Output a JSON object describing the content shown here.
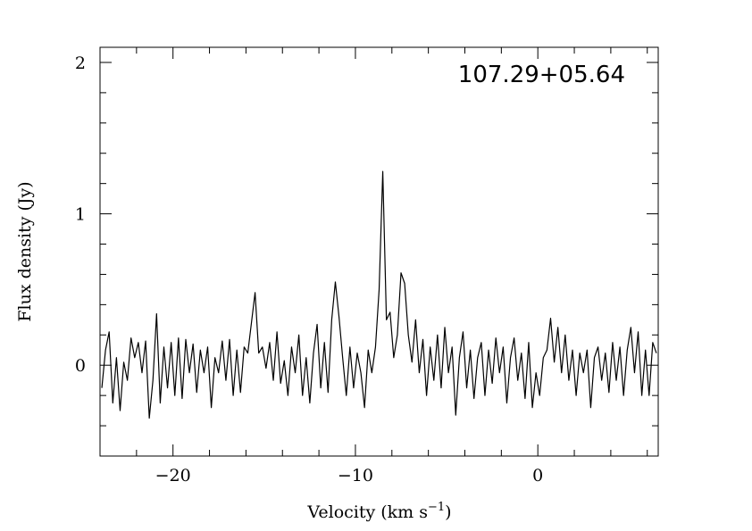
{
  "chart_data": {
    "type": "line",
    "annotation": "107.29+05.64",
    "y_label": "Flux density (Jy)",
    "x_label": "Velocity (km s",
    "x_label_sup": "−1",
    "x_label_end": ")",
    "color": "#000000",
    "xlim": [
      -24,
      6.6
    ],
    "ylim": [
      -0.6,
      2.1
    ],
    "xticks": [
      {
        "value": -20,
        "label": "−20"
      },
      {
        "value": -10,
        "label": "−10"
      },
      0
    ],
    "yticks": [
      0,
      1,
      2
    ],
    "xminorticks": [
      -22,
      -18,
      -16,
      -14,
      -12,
      -8,
      -6,
      -4,
      -2,
      2,
      4,
      6
    ],
    "yminorticks": [
      -0.6,
      -0.4,
      -0.2,
      0.2,
      0.4,
      0.6,
      0.8,
      1.2,
      1.4,
      1.6,
      1.8
    ],
    "x": [
      -23.9,
      -23.7,
      -23.5,
      -23.3,
      -23.1,
      -22.9,
      -22.7,
      -22.5,
      -22.3,
      -22.1,
      -21.9,
      -21.7,
      -21.5,
      -21.3,
      -21.1,
      -20.9,
      -20.7,
      -20.5,
      -20.3,
      -20.1,
      -19.9,
      -19.7,
      -19.5,
      -19.3,
      -19.1,
      -18.9,
      -18.7,
      -18.5,
      -18.3,
      -18.1,
      -17.9,
      -17.7,
      -17.5,
      -17.3,
      -17.1,
      -16.9,
      -16.7,
      -16.5,
      -16.3,
      -16.1,
      -15.9,
      -15.7,
      -15.5,
      -15.3,
      -15.1,
      -14.9,
      -14.7,
      -14.5,
      -14.3,
      -14.1,
      -13.9,
      -13.7,
      -13.5,
      -13.3,
      -13.1,
      -12.9,
      -12.7,
      -12.5,
      -12.3,
      -12.1,
      -11.9,
      -11.7,
      -11.5,
      -11.3,
      -11.1,
      -10.9,
      -10.7,
      -10.5,
      -10.3,
      -10.1,
      -9.9,
      -9.7,
      -9.5,
      -9.3,
      -9.1,
      -8.9,
      -8.7,
      -8.5,
      -8.3,
      -8.1,
      -7.9,
      -7.7,
      -7.5,
      -7.3,
      -7.1,
      -6.9,
      -6.7,
      -6.5,
      -6.3,
      -6.1,
      -5.9,
      -5.7,
      -5.5,
      -5.3,
      -5.1,
      -4.9,
      -4.7,
      -4.5,
      -4.3,
      -4.1,
      -3.9,
      -3.7,
      -3.5,
      -3.3,
      -3.1,
      -2.9,
      -2.7,
      -2.5,
      -2.3,
      -2.1,
      -1.9,
      -1.7,
      -1.5,
      -1.3,
      -1.1,
      -0.9,
      -0.7,
      -0.5,
      -0.3,
      -0.1,
      0.1,
      0.3,
      0.5,
      0.7,
      0.9,
      1.1,
      1.3,
      1.5,
      1.7,
      1.9,
      2.1,
      2.3,
      2.5,
      2.7,
      2.9,
      3.1,
      3.3,
      3.5,
      3.7,
      3.9,
      4.1,
      4.3,
      4.5,
      4.7,
      4.9,
      5.1,
      5.3,
      5.5,
      5.7,
      5.9,
      6.1,
      6.3,
      6.5
    ],
    "values": [
      -0.15,
      0.1,
      0.22,
      -0.25,
      0.05,
      -0.3,
      0.02,
      -0.1,
      0.18,
      0.05,
      0.15,
      -0.05,
      0.16,
      -0.35,
      -0.1,
      0.34,
      -0.25,
      0.12,
      -0.15,
      0.15,
      -0.2,
      0.18,
      -0.22,
      0.17,
      -0.05,
      0.14,
      -0.18,
      0.1,
      -0.05,
      0.12,
      -0.28,
      0.05,
      -0.05,
      0.16,
      -0.1,
      0.17,
      -0.2,
      0.1,
      -0.18,
      0.12,
      0.08,
      0.28,
      0.48,
      0.08,
      0.12,
      -0.02,
      0.15,
      -0.1,
      0.22,
      -0.12,
      0.03,
      -0.2,
      0.12,
      -0.05,
      0.2,
      -0.2,
      0.05,
      -0.25,
      0.08,
      0.27,
      -0.15,
      0.15,
      -0.18,
      0.3,
      0.55,
      0.32,
      0.05,
      -0.2,
      0.12,
      -0.15,
      0.08,
      -0.05,
      -0.28,
      0.1,
      -0.05,
      0.12,
      0.5,
      1.28,
      0.3,
      0.35,
      0.05,
      0.2,
      0.61,
      0.54,
      0.2,
      0.02,
      0.3,
      -0.05,
      0.17,
      -0.2,
      0.12,
      -0.1,
      0.2,
      -0.15,
      0.25,
      -0.05,
      0.12,
      -0.33,
      0.05,
      0.22,
      -0.15,
      0.1,
      -0.22,
      0.05,
      0.15,
      -0.2,
      0.1,
      -0.12,
      0.18,
      -0.05,
      0.12,
      -0.25,
      0.05,
      0.18,
      -0.1,
      0.08,
      -0.22,
      0.15,
      -0.28,
      -0.05,
      -0.2,
      0.05,
      0.1,
      0.31,
      0.02,
      0.25,
      -0.05,
      0.2,
      -0.1,
      0.1,
      -0.2,
      0.08,
      -0.05,
      0.1,
      -0.28,
      0.05,
      0.12,
      -0.1,
      0.08,
      -0.18,
      0.15,
      -0.1,
      0.12,
      -0.2,
      0.1,
      0.25,
      -0.05,
      0.22,
      -0.2,
      0.1,
      -0.2,
      0.15,
      0.08
    ]
  }
}
